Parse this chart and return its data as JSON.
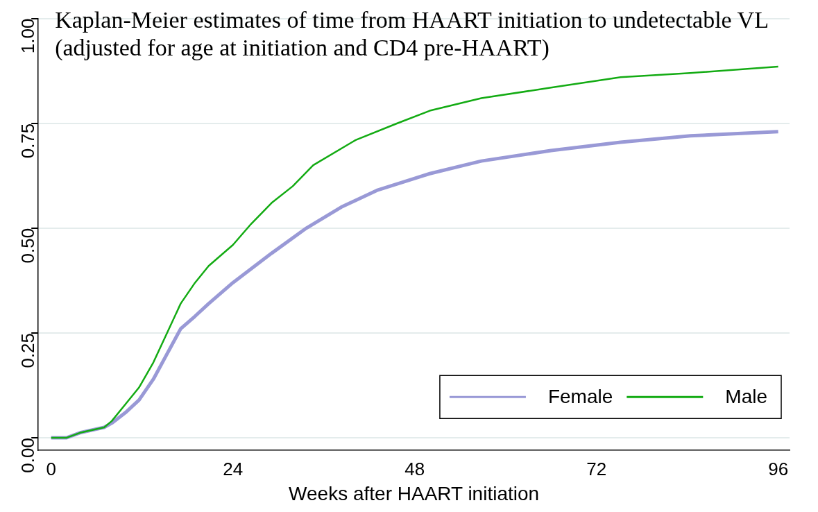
{
  "chart_data": {
    "type": "line",
    "title": "Kaplan-Meier estimates of time from HAART initiation to undetectable VL (adjusted for age at initiation and CD4 pre-HAART)",
    "xlabel": "Weeks after HAART initiation",
    "xlim": [
      -1.7,
      97.5
    ],
    "xticks": [
      0,
      24,
      48,
      72,
      96
    ],
    "ylim": [
      -0.03,
      1.0
    ],
    "yticks": [
      {
        "value": 0,
        "label": "0.00"
      },
      {
        "value": 0.25,
        "label": "0.25"
      },
      {
        "value": 0.5,
        "label": "0.50"
      },
      {
        "value": 0.75,
        "label": "0.75"
      },
      {
        "value": 1,
        "label": "1.00"
      }
    ],
    "grid": "y",
    "legend": "bottom right",
    "marker": "none",
    "line_style": "solid",
    "series": [
      {
        "name": "Female",
        "color": "#9999d6",
        "x": [
          0,
          2,
          3.8,
          7,
          8,
          9.8,
          11.6,
          13.5,
          15.3,
          17.1,
          19,
          20.8,
          24,
          29.1,
          33.7,
          38.3,
          43,
          50,
          56.8,
          66,
          75.2,
          84.4,
          96
        ],
        "values": [
          0,
          0,
          0.012,
          0.025,
          0.035,
          0.06,
          0.09,
          0.14,
          0.2,
          0.26,
          0.29,
          0.32,
          0.37,
          0.44,
          0.5,
          0.55,
          0.59,
          0.63,
          0.66,
          0.685,
          0.705,
          0.72,
          0.73
        ]
      },
      {
        "name": "Male",
        "color": "#13ab13",
        "x": [
          0,
          2,
          3.8,
          7,
          8,
          9.8,
          11.6,
          13.5,
          15.3,
          17.1,
          19,
          20.8,
          24,
          26.4,
          29.1,
          31.9,
          34.6,
          40.2,
          45.7,
          50,
          56.8,
          66,
          75.2,
          84.4,
          96
        ],
        "values": [
          0,
          0,
          0.012,
          0.025,
          0.04,
          0.08,
          0.12,
          0.18,
          0.25,
          0.32,
          0.37,
          0.41,
          0.46,
          0.51,
          0.56,
          0.6,
          0.65,
          0.71,
          0.75,
          0.78,
          0.81,
          0.835,
          0.86,
          0.87,
          0.885
        ]
      }
    ]
  }
}
